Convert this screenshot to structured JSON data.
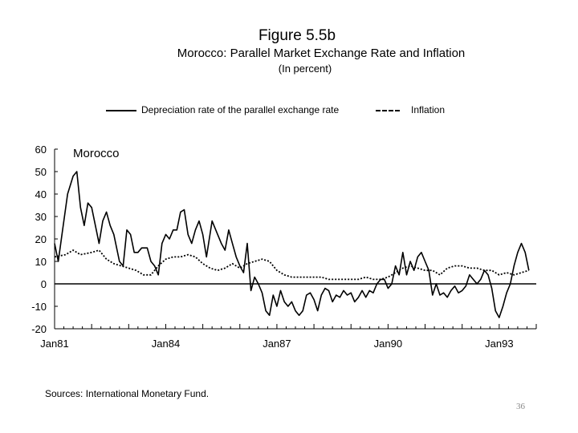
{
  "page": {
    "number": "36"
  },
  "chart_data": {
    "type": "line",
    "title": "Figure 5.5b",
    "subtitle": "Morocco: Parallel Market Exchange Rate and Inflation",
    "units": "(In percent)",
    "panel_label": "Morocco",
    "source": "Sources: International Monetary Fund.",
    "ylim": [
      -20,
      60
    ],
    "yticks": [
      "60",
      "50",
      "40",
      "30",
      "20",
      "10",
      "0",
      "-10",
      "-20"
    ],
    "xlim": [
      1981.0,
      1994.0
    ],
    "xtick_labels": [
      "Jan81",
      "Jan84",
      "Jan87",
      "Jan90",
      "Jan93"
    ],
    "xtick_positions": [
      1981,
      1984,
      1987,
      1990,
      1993
    ],
    "legend": [
      {
        "name": "Depreciation rate of the parallel exchange rate",
        "style": "solid"
      },
      {
        "name": "Inflation",
        "style": "dashed"
      }
    ],
    "series": [
      {
        "name": "Depreciation rate of the parallel exchange rate",
        "style": "solid",
        "x": [
          1981.0,
          1981.1,
          1981.2,
          1981.35,
          1981.5,
          1981.6,
          1981.7,
          1981.8,
          1981.9,
          1982.0,
          1982.1,
          1982.2,
          1982.3,
          1982.4,
          1982.5,
          1982.6,
          1982.75,
          1982.85,
          1982.95,
          1983.05,
          1983.15,
          1983.25,
          1983.35,
          1983.5,
          1983.6,
          1983.7,
          1983.8,
          1983.9,
          1984.0,
          1984.1,
          1984.2,
          1984.3,
          1984.4,
          1984.5,
          1984.6,
          1984.7,
          1984.8,
          1984.9,
          1985.0,
          1985.1,
          1985.25,
          1985.4,
          1985.5,
          1985.6,
          1985.7,
          1985.8,
          1985.9,
          1986.0,
          1986.1,
          1986.2,
          1986.3,
          1986.4,
          1986.5,
          1986.6,
          1986.7,
          1986.8,
          1986.9,
          1987.0,
          1987.1,
          1987.2,
          1987.3,
          1987.4,
          1987.5,
          1987.6,
          1987.7,
          1987.8,
          1987.9,
          1988.0,
          1988.1,
          1988.2,
          1988.3,
          1988.4,
          1988.5,
          1988.6,
          1988.7,
          1988.8,
          1988.9,
          1989.0,
          1989.1,
          1989.2,
          1989.3,
          1989.4,
          1989.5,
          1989.6,
          1989.7,
          1989.8,
          1989.9,
          1990.0,
          1990.1,
          1990.2,
          1990.3,
          1990.4,
          1990.5,
          1990.6,
          1990.7,
          1990.8,
          1990.9,
          1991.0,
          1991.1,
          1991.2,
          1991.3,
          1991.4,
          1991.5,
          1991.6,
          1991.7,
          1991.8,
          1991.9,
          1992.0,
          1992.1,
          1992.2,
          1992.3,
          1992.4,
          1992.5,
          1992.6,
          1992.7,
          1992.8,
          1992.9,
          1993.0,
          1993.1,
          1993.2,
          1993.3,
          1993.4,
          1993.5,
          1993.6,
          1993.7,
          1993.8
        ],
        "values": [
          18,
          10,
          22,
          40,
          48,
          50,
          34,
          26,
          36,
          34,
          26,
          18,
          28,
          32,
          26,
          22,
          10,
          8,
          24,
          22,
          14,
          14,
          16,
          16,
          10,
          8,
          4,
          18,
          22,
          20,
          24,
          24,
          32,
          33,
          22,
          18,
          24,
          28,
          22,
          12,
          28,
          22,
          18,
          15,
          24,
          18,
          12,
          8,
          5,
          18,
          -3,
          3,
          0,
          -4,
          -12,
          -14,
          -5,
          -10,
          -3,
          -8,
          -10,
          -8,
          -12,
          -14,
          -12,
          -5,
          -4,
          -7,
          -12,
          -5,
          -2,
          -3,
          -8,
          -5,
          -6,
          -3,
          -5,
          -4,
          -8,
          -6,
          -3,
          -6,
          -3,
          -4,
          0,
          2,
          2,
          -2,
          0,
          8,
          4,
          14,
          4,
          10,
          6,
          12,
          14,
          10,
          6,
          -5,
          0,
          -5,
          -4,
          -6,
          -3,
          -1,
          -4,
          -3,
          -1,
          4,
          2,
          0,
          2,
          6,
          4,
          -2,
          -12,
          -15,
          -10,
          -4,
          0,
          8,
          14,
          18,
          14,
          6
        ]
      },
      {
        "name": "Inflation",
        "style": "dashed",
        "x": [
          1981.0,
          1981.3,
          1981.5,
          1981.7,
          1982.0,
          1982.2,
          1982.4,
          1982.6,
          1982.8,
          1983.0,
          1983.2,
          1983.4,
          1983.6,
          1983.8,
          1984.0,
          1984.2,
          1984.4,
          1984.6,
          1984.8,
          1985.0,
          1985.2,
          1985.4,
          1985.6,
          1985.8,
          1986.0,
          1986.2,
          1986.4,
          1986.6,
          1986.8,
          1987.0,
          1987.2,
          1987.4,
          1987.6,
          1987.8,
          1988.0,
          1988.2,
          1988.4,
          1988.6,
          1988.8,
          1989.0,
          1989.2,
          1989.4,
          1989.6,
          1989.8,
          1990.0,
          1990.2,
          1990.4,
          1990.6,
          1990.8,
          1991.0,
          1991.2,
          1991.4,
          1991.6,
          1991.8,
          1992.0,
          1992.2,
          1992.4,
          1992.6,
          1992.8,
          1993.0,
          1993.2,
          1993.4,
          1993.6,
          1993.8
        ],
        "values": [
          12,
          13,
          15,
          13,
          14,
          15,
          11,
          9,
          8,
          7,
          6,
          4,
          4,
          8,
          11,
          12,
          12,
          13,
          12,
          9,
          7,
          6,
          7,
          9,
          7,
          9,
          10,
          11,
          10,
          6,
          4,
          3,
          3,
          3,
          3,
          3,
          2,
          2,
          2,
          2,
          2,
          3,
          2,
          2,
          3,
          5,
          7,
          8,
          7,
          6,
          6,
          4,
          7,
          8,
          8,
          7,
          7,
          6,
          6,
          4,
          5,
          4,
          5,
          6
        ]
      }
    ]
  }
}
